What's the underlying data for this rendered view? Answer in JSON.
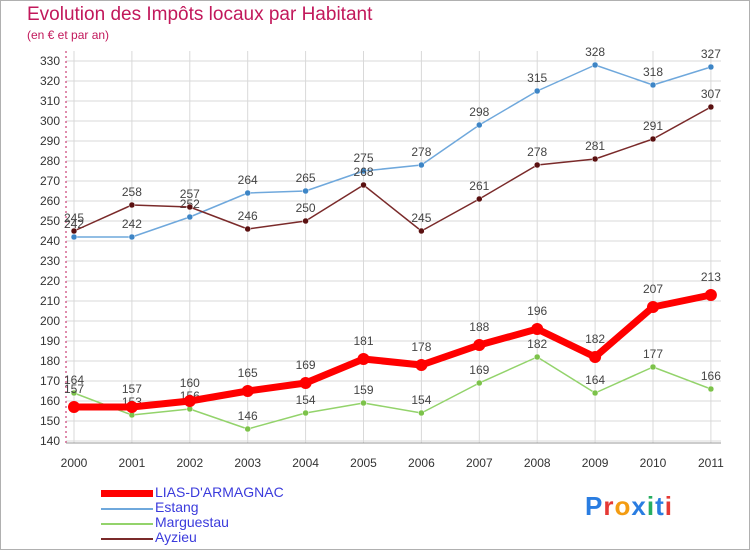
{
  "header": {
    "title": "Evolution des Impôts locaux par Habitant",
    "subtitle": "(en € et par an)"
  },
  "logo": {
    "text": "Proxiti",
    "letters": [
      "P",
      "r",
      "o",
      "x",
      "i",
      "t",
      "i"
    ],
    "colors": [
      "#2a7de1",
      "#e53935",
      "#f39c12",
      "#2a7de1",
      "#27ae60",
      "#2a7de1",
      "#e53935"
    ]
  },
  "chart_data": {
    "type": "line",
    "title": "Evolution des Impôts locaux par Habitant",
    "subtitle": "(en € et par an)",
    "xlabel": "",
    "ylabel": "",
    "x": [
      "2000",
      "2001",
      "2002",
      "2003",
      "2004",
      "2005",
      "2006",
      "2007",
      "2008",
      "2009",
      "2010",
      "2011"
    ],
    "ylim": [
      140,
      330
    ],
    "yticks": [
      140,
      150,
      160,
      170,
      180,
      190,
      200,
      210,
      220,
      230,
      240,
      250,
      260,
      270,
      280,
      290,
      300,
      310,
      320,
      330
    ],
    "grid": true,
    "legend_position": "bottom-left",
    "series": [
      {
        "name": "LIAS-D'ARMAGNAC",
        "values": [
          157,
          157,
          160,
          165,
          169,
          181,
          178,
          188,
          196,
          182,
          207,
          213
        ],
        "color": "#ff0000",
        "marker": "#ff0000",
        "width": 7,
        "radius": 6
      },
      {
        "name": "Estang",
        "values": [
          242,
          242,
          252,
          264,
          265,
          275,
          278,
          298,
          315,
          328,
          318,
          327
        ],
        "color": "#6fa8dc",
        "marker": "#3d85c6",
        "width": 1.5,
        "radius": 3
      },
      {
        "name": "Marguestau",
        "values": [
          164,
          153,
          156,
          146,
          154,
          159,
          154,
          169,
          182,
          164,
          177,
          166
        ],
        "color": "#93d36b",
        "marker": "#7cc24a",
        "width": 1.5,
        "radius": 3
      },
      {
        "name": "Ayzieu",
        "values": [
          245,
          258,
          257,
          246,
          250,
          268,
          245,
          261,
          278,
          281,
          291,
          307
        ],
        "color": "#7a2a2a",
        "marker": "#5a1010",
        "width": 1.5,
        "radius": 3
      }
    ]
  }
}
